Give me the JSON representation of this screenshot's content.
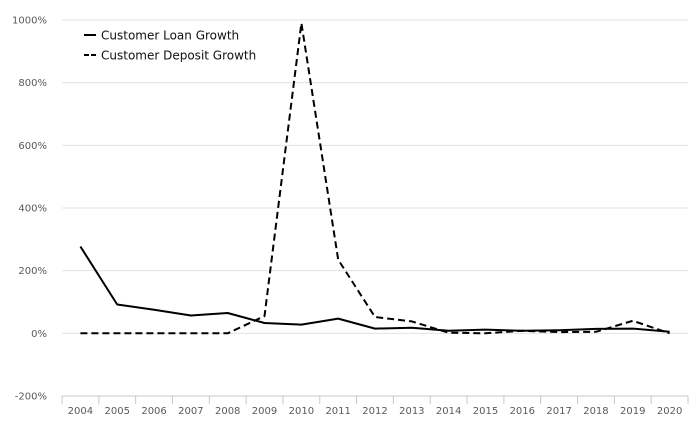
{
  "chart_data": {
    "type": "line",
    "title": "",
    "xlabel": "",
    "ylabel": "",
    "categories": [
      "2004",
      "2005",
      "2006",
      "2007",
      "2008",
      "2009",
      "2010",
      "2011",
      "2012",
      "2013",
      "2014",
      "2015",
      "2016",
      "2017",
      "2018",
      "2019",
      "2020"
    ],
    "series": [
      {
        "name": "Customer Loan Growth",
        "style": "solid",
        "color": "#000000",
        "values": [
          277,
          92,
          75,
          57,
          65,
          33,
          28,
          47,
          15,
          18,
          8,
          12,
          8,
          10,
          14,
          15,
          5
        ]
      },
      {
        "name": "Customer Deposit Growth",
        "style": "dashed",
        "color": "#000000",
        "values": [
          0,
          0,
          0,
          0,
          0,
          55,
          990,
          235,
          52,
          38,
          2,
          0,
          8,
          4,
          5,
          40,
          0
        ]
      }
    ],
    "ylim": [
      -200,
      1000
    ],
    "yticks": [
      -200,
      0,
      200,
      400,
      600,
      800,
      1000
    ],
    "ytick_labels": [
      "-200%",
      "0%",
      "200%",
      "400%",
      "600%",
      "800%",
      "1000%"
    ],
    "grid": true,
    "legend_position": "top-left"
  }
}
